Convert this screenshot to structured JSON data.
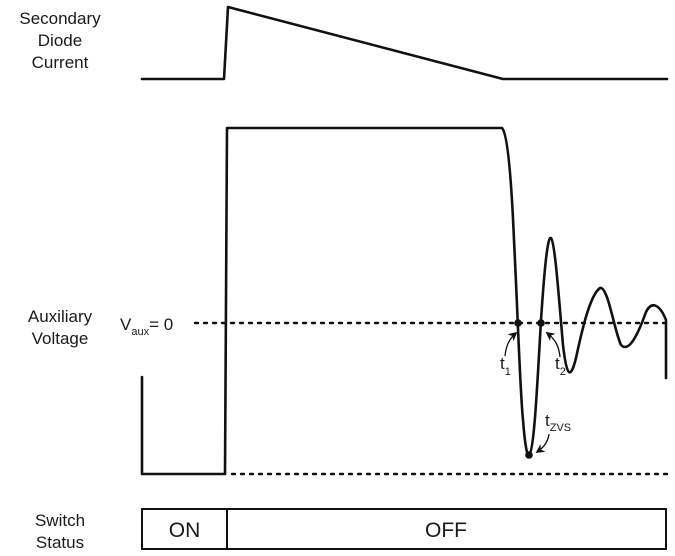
{
  "labels": {
    "secondary_diode_current": [
      "Secondary",
      "Diode",
      "Current"
    ],
    "auxiliary_voltage": [
      "Auxiliary",
      "Voltage"
    ],
    "switch_status": [
      "Switch",
      "Status"
    ]
  },
  "annotations": {
    "vaux_main": "V",
    "vaux_sub": "aux",
    "vaux_eq": "= 0",
    "t1_main": "t",
    "t1_sub": "1",
    "t2_main": "t",
    "t2_sub": "2",
    "tzvs_main": "t",
    "tzvs_sub": "ZVS"
  },
  "switch": {
    "on": "ON",
    "off": "OFF"
  }
}
